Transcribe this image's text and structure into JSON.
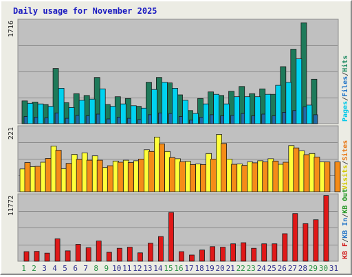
{
  "chart_data": {
    "type": "bar",
    "title": "Daily usage for November 2025",
    "days": [
      {
        "label": "1",
        "weekend": true
      },
      {
        "label": "2",
        "weekend": true
      },
      {
        "label": "3",
        "weekend": false
      },
      {
        "label": "4",
        "weekend": false
      },
      {
        "label": "5",
        "weekend": false
      },
      {
        "label": "6",
        "weekend": false
      },
      {
        "label": "7",
        "weekend": false
      },
      {
        "label": "8",
        "weekend": true
      },
      {
        "label": "9",
        "weekend": true
      },
      {
        "label": "10",
        "weekend": false
      },
      {
        "label": "11",
        "weekend": false
      },
      {
        "label": "12",
        "weekend": false
      },
      {
        "label": "13",
        "weekend": false
      },
      {
        "label": "14",
        "weekend": false
      },
      {
        "label": "15",
        "weekend": true
      },
      {
        "label": "16",
        "weekend": true
      },
      {
        "label": "17",
        "weekend": false
      },
      {
        "label": "18",
        "weekend": false
      },
      {
        "label": "19",
        "weekend": false
      },
      {
        "label": "20",
        "weekend": false
      },
      {
        "label": "21",
        "weekend": false
      },
      {
        "label": "22",
        "weekend": true
      },
      {
        "label": "23",
        "weekend": true
      },
      {
        "label": "24",
        "weekend": false
      },
      {
        "label": "25",
        "weekend": false
      },
      {
        "label": "26",
        "weekend": false
      },
      {
        "label": "27",
        "weekend": false
      },
      {
        "label": "28",
        "weekend": false
      },
      {
        "label": "29",
        "weekend": true
      },
      {
        "label": "30",
        "weekend": true
      },
      {
        "label": "31",
        "weekend": false
      }
    ],
    "weekend_label_color": "#248f40",
    "weekday_label_color": "#2c2c8c",
    "panels": [
      {
        "name": "pages-files-hits",
        "max_label": "1716",
        "ymax": 1716,
        "legend": [
          {
            "text": "Pages",
            "color": "#00c8e8"
          },
          {
            "text": "/",
            "color": "#4a4a4a"
          },
          {
            "text": "Files",
            "color": "#2878c8"
          },
          {
            "text": "/",
            "color": "#4a4a4a"
          },
          {
            "text": "Hits",
            "color": "#1e8a62"
          }
        ],
        "series": [
          {
            "name": "Hits",
            "color": "#1e7a5a",
            "values": [
              380,
              360,
              320,
              920,
              350,
              500,
              470,
              770,
              320,
              450,
              420,
              290,
              690,
              770,
              680,
              480,
              220,
              420,
              530,
              470,
              540,
              620,
              500,
              580,
              490,
              950,
              1240,
              1680,
              740,
              0,
              0
            ]
          },
          {
            "name": "Files",
            "color": "#1f6aa8",
            "values": [
              120,
              110,
              100,
              180,
              90,
              140,
              130,
              160,
              80,
              110,
              90,
              70,
              150,
              180,
              170,
              120,
              60,
              110,
              150,
              130,
              140,
              170,
              130,
              160,
              130,
              190,
              220,
              280,
              150,
              0,
              0
            ]
          },
          {
            "name": "Pages",
            "color": "#00d2f0",
            "values": [
              340,
              330,
              290,
              590,
              270,
              390,
              410,
              580,
              290,
              330,
              300,
              260,
              570,
              690,
              590,
              390,
              170,
              330,
              490,
              330,
              450,
              450,
              450,
              490,
              640,
              690,
              1080,
              310,
              0,
              0,
              0
            ]
          }
        ]
      },
      {
        "name": "visits-sites",
        "max_label": "221",
        "ymax": 221,
        "legend": [
          {
            "text": "Visits",
            "color": "#d2c800"
          },
          {
            "text": "/",
            "color": "#4a4a4a"
          },
          {
            "text": "Sites",
            "color": "#e87a1a"
          }
        ],
        "series": [
          {
            "name": "Visits",
            "color": "#ffff3a",
            "values": [
              78,
              86,
              101,
              156,
              79,
              128,
              133,
              123,
              83,
              105,
              108,
              106,
              144,
              187,
              138,
              113,
              104,
              95,
              131,
              196,
              112,
              95,
              102,
              106,
              113,
              94,
              158,
              140,
              131,
              102,
              0
            ]
          },
          {
            "name": "Sites",
            "color": "#f58c18",
            "values": [
              100,
              87,
              114,
              142,
              97,
              111,
              108,
              108,
              89,
              101,
              100,
              112,
              138,
              164,
              117,
              103,
              93,
              93,
              112,
              165,
              94,
              90,
              99,
              102,
              105,
              101,
              150,
              127,
              119,
              102,
              102
            ]
          }
        ]
      },
      {
        "name": "kb-f-in-out",
        "max_label": "11772",
        "ymax": 11772,
        "legend": [
          {
            "text": "KB F",
            "color": "#d01818"
          },
          {
            "text": "/",
            "color": "#4a4a4a"
          },
          {
            "text": "KB In",
            "color": "#2878c8"
          },
          {
            "text": "/",
            "color": "#4a4a4a"
          },
          {
            "text": "KB Out",
            "color": "#2a9a2a"
          }
        ],
        "series": [
          {
            "name": "KB F",
            "color": "#e01818",
            "values": [
              1700,
              1750,
              1450,
              4000,
              1850,
              3000,
              2400,
              3600,
              1600,
              2300,
              2500,
              1500,
              3200,
              4400,
              8700,
              1700,
              1100,
              2000,
              2600,
              2500,
              3100,
              3300,
              2300,
              3100,
              3100,
              4900,
              8500,
              6700,
              7400,
              11700,
              0
            ]
          }
        ]
      }
    ]
  }
}
